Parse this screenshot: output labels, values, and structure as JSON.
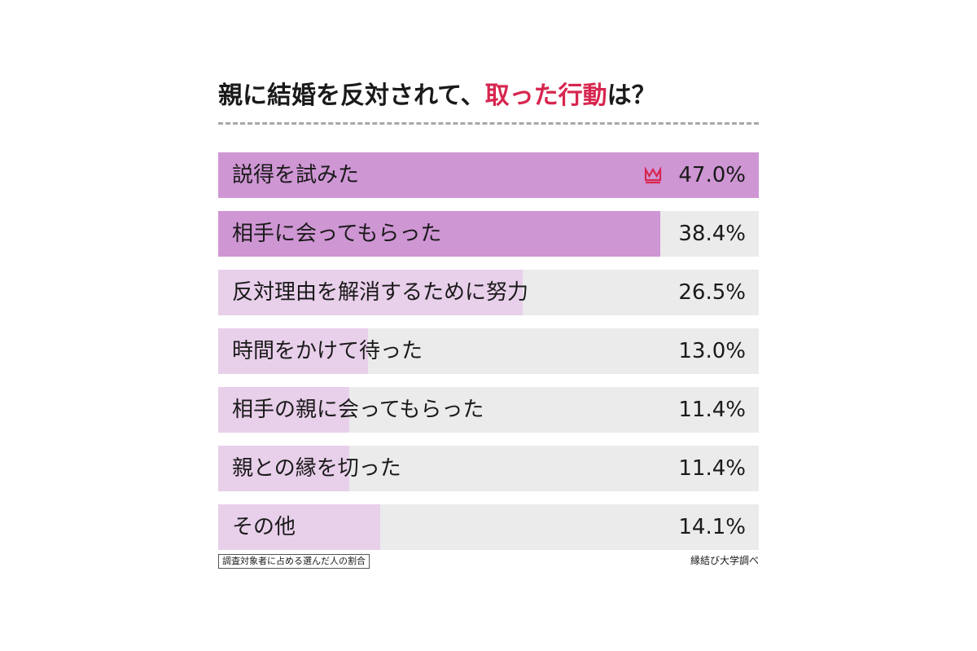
{
  "title": {
    "main": "親に結婚を反対されて、",
    "accent": "取った行動",
    "tail": "は？"
  },
  "colors": {
    "accent": "#d7264f",
    "strong_fill": "#cf96d4",
    "light_fill": "#e8cfea",
    "track": "#ebebeb",
    "divider": "#a8a8a8"
  },
  "chart_data": {
    "type": "bar",
    "orientation": "horizontal",
    "categories": [
      "説得を試みた",
      "相手に会ってもらった",
      "反対理由を解消するために努力",
      "時間をかけて待った",
      "相手の親に会ってもらった",
      "親との縁を切った",
      "その他"
    ],
    "values": [
      47.0,
      38.4,
      26.5,
      13.0,
      11.4,
      11.4,
      14.1
    ],
    "value_labels": [
      "47.0%",
      "38.4%",
      "26.5%",
      "13.0%",
      "11.4%",
      "11.4%",
      "14.1%"
    ],
    "highlight": [
      true,
      true,
      false,
      false,
      false,
      false,
      false
    ],
    "xlim": [
      0,
      47.0
    ],
    "top_marker_icon": "crown-icon"
  },
  "footnote": "調査対象者に占める選んだ人の割合",
  "source": "縁結び大学調べ"
}
